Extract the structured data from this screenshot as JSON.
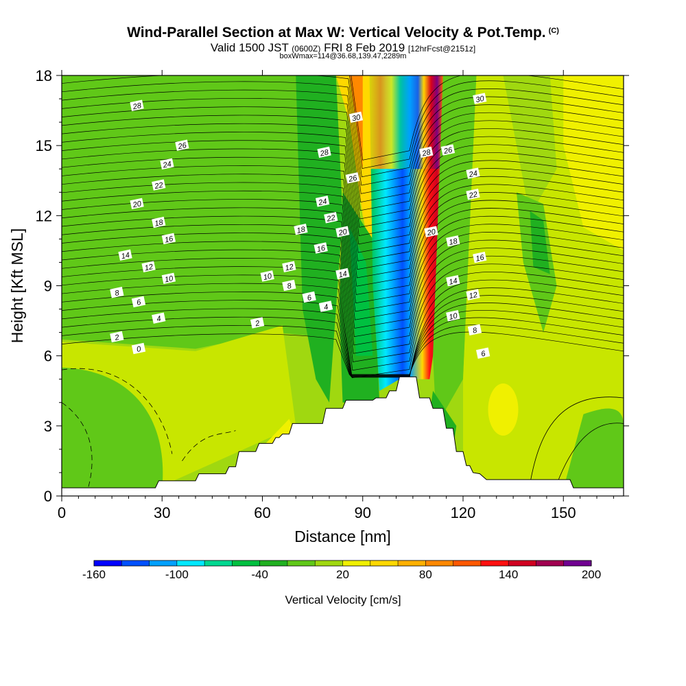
{
  "titles": {
    "main": "Wind-Parallel Section at Max W: Vertical Velocity & Pot.Temp.",
    "copyright": "(C)",
    "valid_prefix": "Valid 1500 JST",
    "valid_utc": "(0600Z)",
    "valid_date": "FRI 8 Feb 2019",
    "forecast": "[12hrFcst@2151z]",
    "boxwmax": "boxWmax=114@36.68,139.47,2289m"
  },
  "chart_data": {
    "type": "contour",
    "xlabel": "Distance [nm]",
    "ylabel": "Height [Kft MSL]",
    "xlim": [
      0,
      168
    ],
    "ylim": [
      0,
      18
    ],
    "x_ticks": [
      0,
      30,
      60,
      90,
      120,
      150
    ],
    "y_ticks": [
      0,
      3,
      6,
      9,
      12,
      15,
      18
    ],
    "colorbar": {
      "label": "Vertical Velocity [cm/s]",
      "tick_labels": [
        "-160",
        "-100",
        "-40",
        "20",
        "80",
        "140",
        "200"
      ],
      "levels": [
        -160,
        -140,
        -120,
        -100,
        -80,
        -60,
        -40,
        -20,
        0,
        20,
        40,
        60,
        80,
        100,
        120,
        140,
        160,
        180,
        200
      ],
      "colors": [
        "#0000ff",
        "#0050ff",
        "#00a0ff",
        "#00e8ff",
        "#00d890",
        "#00c040",
        "#20b020",
        "#60c818",
        "#a0d810",
        "#f0f000",
        "#ffd800",
        "#ffb000",
        "#ff8800",
        "#ff5800",
        "#ff1010",
        "#d00020",
        "#a00050",
        "#700090"
      ]
    },
    "terrain_profile": [
      [
        0,
        0.35
      ],
      [
        28,
        0.35
      ],
      [
        29,
        0.65
      ],
      [
        40,
        0.65
      ],
      [
        41,
        0.95
      ],
      [
        49,
        0.95
      ],
      [
        50,
        1.25
      ],
      [
        52,
        1.25
      ],
      [
        53,
        1.9
      ],
      [
        58,
        1.9
      ],
      [
        59,
        2.25
      ],
      [
        63,
        2.25
      ],
      [
        64,
        2.5
      ],
      [
        65,
        2.5
      ],
      [
        66,
        2.65
      ],
      [
        68,
        2.65
      ],
      [
        69,
        3.1
      ],
      [
        78,
        3.1
      ],
      [
        79,
        3.75
      ],
      [
        84,
        3.75
      ],
      [
        85,
        4.1
      ],
      [
        93,
        4.1
      ],
      [
        94,
        4.2
      ],
      [
        97,
        4.2
      ],
      [
        98,
        4.5
      ],
      [
        100,
        4.5
      ],
      [
        101,
        5.1
      ],
      [
        106,
        5.1
      ],
      [
        107,
        4.2
      ],
      [
        110,
        4.2
      ],
      [
        111,
        3.75
      ],
      [
        114,
        3.75
      ],
      [
        115,
        2.9
      ],
      [
        117,
        2.9
      ],
      [
        118,
        1.9
      ],
      [
        120,
        1.9
      ],
      [
        121,
        1.3
      ],
      [
        122,
        1.3
      ],
      [
        123,
        1.0
      ],
      [
        125,
        0.95
      ],
      [
        127,
        0.7
      ],
      [
        152,
        0.7
      ],
      [
        153,
        0.35
      ],
      [
        168,
        0.35
      ]
    ],
    "theta_labels": [
      {
        "text": "28",
        "x": 22.5,
        "y": 16.7
      },
      {
        "text": "26",
        "x": 36.0,
        "y": 15.0
      },
      {
        "text": "24",
        "x": 31.5,
        "y": 14.2
      },
      {
        "text": "22",
        "x": 29.0,
        "y": 13.3
      },
      {
        "text": "20",
        "x": 22.5,
        "y": 12.5
      },
      {
        "text": "18",
        "x": 29.0,
        "y": 11.7
      },
      {
        "text": "16",
        "x": 32.0,
        "y": 11.0
      },
      {
        "text": "14",
        "x": 19.0,
        "y": 10.3
      },
      {
        "text": "12",
        "x": 26.0,
        "y": 9.8
      },
      {
        "text": "10",
        "x": 32.0,
        "y": 9.3
      },
      {
        "text": "8",
        "x": 16.5,
        "y": 8.7
      },
      {
        "text": "6",
        "x": 23.0,
        "y": 8.3
      },
      {
        "text": "4",
        "x": 29.0,
        "y": 7.6
      },
      {
        "text": "2",
        "x": 16.5,
        "y": 6.8
      },
      {
        "text": "0",
        "x": 23.0,
        "y": 6.3
      },
      {
        "text": "2",
        "x": 58.5,
        "y": 7.4
      },
      {
        "text": "10",
        "x": 61.5,
        "y": 9.4
      },
      {
        "text": "12",
        "x": 68.0,
        "y": 9.8
      },
      {
        "text": "8",
        "x": 68.0,
        "y": 9.0
      },
      {
        "text": "6",
        "x": 74.0,
        "y": 8.5
      },
      {
        "text": "4",
        "x": 79.0,
        "y": 8.1
      },
      {
        "text": "14",
        "x": 84.0,
        "y": 9.5
      },
      {
        "text": "16",
        "x": 77.5,
        "y": 10.6
      },
      {
        "text": "18",
        "x": 71.5,
        "y": 11.4
      },
      {
        "text": "20",
        "x": 84.0,
        "y": 11.3
      },
      {
        "text": "22",
        "x": 80.5,
        "y": 11.9
      },
      {
        "text": "24",
        "x": 78.0,
        "y": 12.6
      },
      {
        "text": "26",
        "x": 87.0,
        "y": 13.6
      },
      {
        "text": "28",
        "x": 78.5,
        "y": 14.7
      },
      {
        "text": "30",
        "x": 88.0,
        "y": 16.2
      },
      {
        "text": "28",
        "x": 109.0,
        "y": 14.7
      },
      {
        "text": "26",
        "x": 115.5,
        "y": 14.8
      },
      {
        "text": "24",
        "x": 123.0,
        "y": 13.8
      },
      {
        "text": "22",
        "x": 123.0,
        "y": 12.9
      },
      {
        "text": "20",
        "x": 110.5,
        "y": 11.3
      },
      {
        "text": "18",
        "x": 117.0,
        "y": 10.9
      },
      {
        "text": "16",
        "x": 125.0,
        "y": 10.2
      },
      {
        "text": "14",
        "x": 117.0,
        "y": 9.2
      },
      {
        "text": "12",
        "x": 123.0,
        "y": 8.6
      },
      {
        "text": "10",
        "x": 117.0,
        "y": 7.7
      },
      {
        "text": "8",
        "x": 123.5,
        "y": 7.1
      },
      {
        "text": "6",
        "x": 126.0,
        "y": 6.1
      },
      {
        "text": "30",
        "x": 125.0,
        "y": 17.0
      }
    ]
  }
}
